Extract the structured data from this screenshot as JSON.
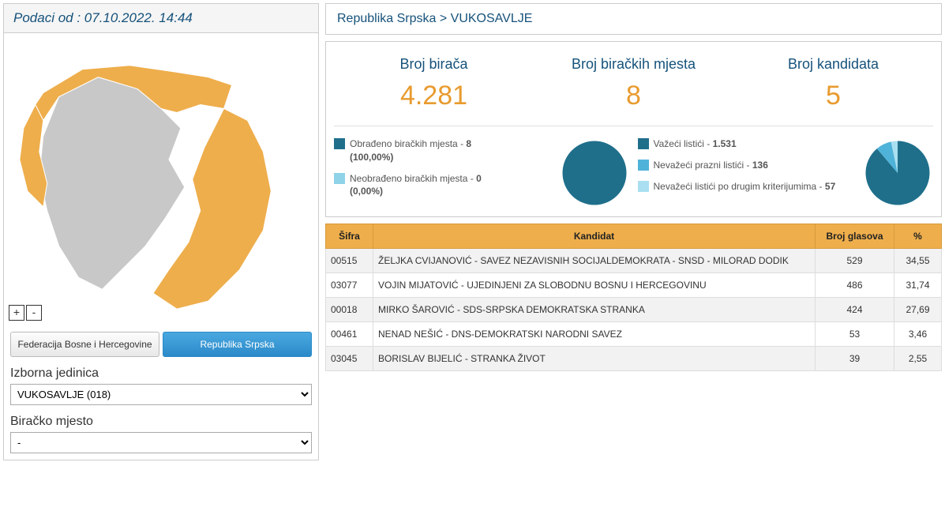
{
  "left": {
    "header_prefix": "Podaci od : ",
    "header_date": "07.10.2022. 14:44",
    "zoom_in": "+",
    "zoom_out": "-",
    "tab_fbih": "Federacija Bosne i Hercegovine",
    "tab_rs": "Republika Srpska",
    "izborna_label": "Izborna jedinica",
    "izborna_value": "VUKOSAVLJE (018)",
    "biracko_label": "Biračko mjesto",
    "biracko_value": "-"
  },
  "breadcrumb": {
    "part1": "Republika Srpska",
    "sep": " > ",
    "part2": "VUKOSAVLJE"
  },
  "stats": {
    "s1_label": "Broj birača",
    "s1_value": "4.281",
    "s2_label": "Broj biračkih mjesta",
    "s2_value": "8",
    "s3_label": "Broj kandidata",
    "s3_value": "5"
  },
  "pie1": {
    "legend": [
      {
        "color": "#1f6f8b",
        "text_a": "Obrađeno biračkih mjesta - ",
        "bold": "8",
        "text_b": "(100,00%)"
      },
      {
        "color": "#8fd3e8",
        "text_a": "Neobrađeno biračkih mjesta - ",
        "bold": "0",
        "text_b": "(0,00%)"
      }
    ],
    "slices": [
      {
        "color": "#1f6f8b",
        "value": 100
      },
      {
        "color": "#8fd3e8",
        "value": 0
      }
    ]
  },
  "pie2": {
    "legend": [
      {
        "color": "#1f6f8b",
        "text_a": "Važeći listići - ",
        "bold": "1.531"
      },
      {
        "color": "#4fb3d9",
        "text_a": "Nevažeći prazni listići - ",
        "bold": "136"
      },
      {
        "color": "#a9dff0",
        "text_a": "Nevažeći listići po drugim kriterijumima - ",
        "bold": "57"
      }
    ],
    "slices": [
      {
        "color": "#1f6f8b",
        "value": 1531
      },
      {
        "color": "#4fb3d9",
        "value": 136
      },
      {
        "color": "#a9dff0",
        "value": 57
      }
    ]
  },
  "table": {
    "headers": {
      "sifra": "Šifra",
      "kandidat": "Kandidat",
      "glasova": "Broj glasova",
      "pct": "%"
    },
    "rows": [
      {
        "sifra": "00515",
        "kandidat": "ŽELJKA CVIJANOVIĆ - SAVEZ NEZAVISNIH SOCIJALDEMOKRATA - SNSD - MILORAD DODIK",
        "glasova": "529",
        "pct": "34,55"
      },
      {
        "sifra": "03077",
        "kandidat": "VOJIN MIJATOVIĆ - UJEDINJENI ZA SLOBODNU BOSNU I HERCEGOVINU",
        "glasova": "486",
        "pct": "31,74"
      },
      {
        "sifra": "00018",
        "kandidat": "MIRKO ŠAROVIĆ - SDS-SRPSKA DEMOKRATSKA STRANKA",
        "glasova": "424",
        "pct": "27,69"
      },
      {
        "sifra": "00461",
        "kandidat": "NENAD NEŠIĆ - DNS-DEMOKRATSKI NARODNI SAVEZ",
        "glasova": "53",
        "pct": "3,46"
      },
      {
        "sifra": "03045",
        "kandidat": "BORISLAV BIJELIĆ - STRANKA ŽIVOT",
        "glasova": "39",
        "pct": "2,55"
      }
    ]
  },
  "colors": {
    "map_active": "#eeae4c",
    "map_inactive": "#c8c8c8",
    "header_text": "#16527b",
    "accent": "#e89b2f"
  }
}
